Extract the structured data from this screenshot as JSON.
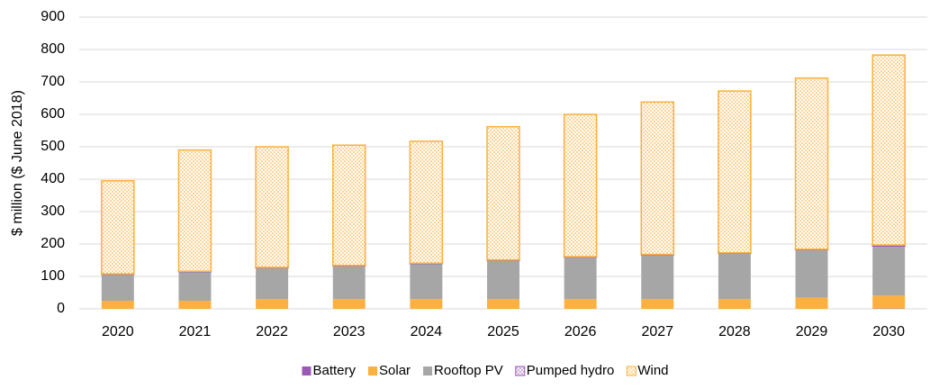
{
  "chart_data": {
    "type": "stacked-bar",
    "y_label": "$ million ($ June 2018)",
    "categories": [
      "2020",
      "2021",
      "2022",
      "2023",
      "2024",
      "2025",
      "2026",
      "2027",
      "2028",
      "2029",
      "2030"
    ],
    "series": [
      {
        "name": "Battery",
        "color": "#9b59b6",
        "hatch": false,
        "values": [
          0,
          0,
          0,
          0,
          0,
          0,
          0,
          0,
          0,
          0,
          1
        ]
      },
      {
        "name": "Solar",
        "color": "#fbb040",
        "hatch": false,
        "values": [
          25,
          25,
          30,
          30,
          30,
          30,
          30,
          30,
          30,
          35,
          40
        ]
      },
      {
        "name": "Rooftop PV",
        "color": "#a6a6a6",
        "hatch": false,
        "values": [
          82,
          90,
          97,
          103,
          110,
          120,
          130,
          137,
          142,
          148,
          153
        ]
      },
      {
        "name": "Pumped hydro",
        "color": "#9b59b6",
        "hatch": true,
        "values": [
          1,
          1,
          1,
          1,
          1,
          1,
          1,
          1,
          1,
          1,
          3
        ]
      },
      {
        "name": "Wind",
        "color": "#fbb040",
        "hatch": true,
        "values": [
          287,
          374,
          372,
          371,
          376,
          411,
          439,
          470,
          499,
          528,
          586
        ]
      }
    ],
    "ylim": [
      0,
      900
    ],
    "yticks": [
      0,
      100,
      200,
      300,
      400,
      500,
      600,
      700,
      800,
      900
    ],
    "grid": true,
    "legend": "bottom"
  }
}
